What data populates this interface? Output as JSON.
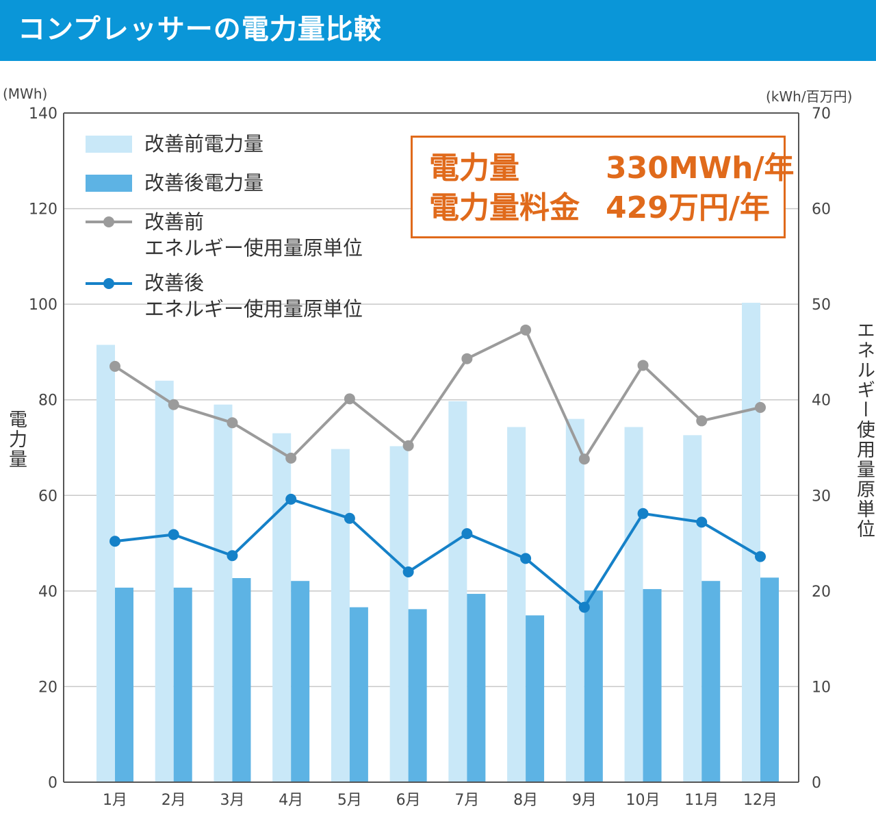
{
  "header": {
    "title": "コンプレッサーの電力量比較"
  },
  "colors": {
    "header_bg": "#0a96d8",
    "before_bar": "#c9e8f8",
    "after_bar": "#5db3e4",
    "before_line": "#9b9b9b",
    "after_line": "#1581c8",
    "summary": "#e06a1b"
  },
  "axes": {
    "left_unit": "(MWh)",
    "right_unit": "(kWh/百万円)",
    "left_title": "電力量",
    "right_title": "エネルギー使用量原単位"
  },
  "legend": {
    "before_power": "改善前電力量",
    "after_power": "改善後電力量",
    "before_intensity_1": "改善前",
    "before_intensity_2": "エネルギー使用量原単位",
    "after_intensity_1": "改善後",
    "after_intensity_2": "エネルギー使用量原単位"
  },
  "summary": {
    "power_label": "電力量",
    "power_value": "330MWh/年",
    "cost_label": "電力量料金",
    "cost_value": "429万円/年"
  },
  "chart_data": {
    "type": "bar+line",
    "categories": [
      "1月",
      "2月",
      "3月",
      "4月",
      "5月",
      "6月",
      "7月",
      "8月",
      "9月",
      "10月",
      "11月",
      "12月"
    ],
    "left_axis": {
      "min": 0,
      "max": 140,
      "ticks": [
        0,
        20,
        40,
        60,
        80,
        100,
        120,
        140
      ]
    },
    "right_axis": {
      "min": 0,
      "max": 70,
      "ticks": [
        0,
        10,
        20,
        30,
        40,
        50,
        60,
        70
      ]
    },
    "bar_series": [
      {
        "name": "改善前電力量",
        "values": [
          91.5,
          84,
          79,
          73,
          69.7,
          70.3,
          79.7,
          74.3,
          76,
          74.3,
          72.6,
          100.3
        ]
      },
      {
        "name": "改善後電力量",
        "values": [
          40.7,
          40.7,
          42.7,
          42.1,
          36.6,
          36.2,
          39.4,
          34.9,
          40.1,
          40.4,
          42.1,
          42.8
        ]
      }
    ],
    "line_series": [
      {
        "name": "改善前エネルギー使用量原単位",
        "values": [
          43.5,
          39.5,
          37.6,
          33.9,
          40.1,
          35.2,
          44.3,
          47.3,
          33.8,
          43.6,
          37.8,
          39.2
        ]
      },
      {
        "name": "改善後エネルギー使用量原単位",
        "values": [
          25.2,
          25.9,
          23.7,
          29.6,
          27.6,
          22.0,
          26.0,
          23.4,
          18.3,
          28.1,
          27.2,
          23.6
        ]
      }
    ]
  }
}
